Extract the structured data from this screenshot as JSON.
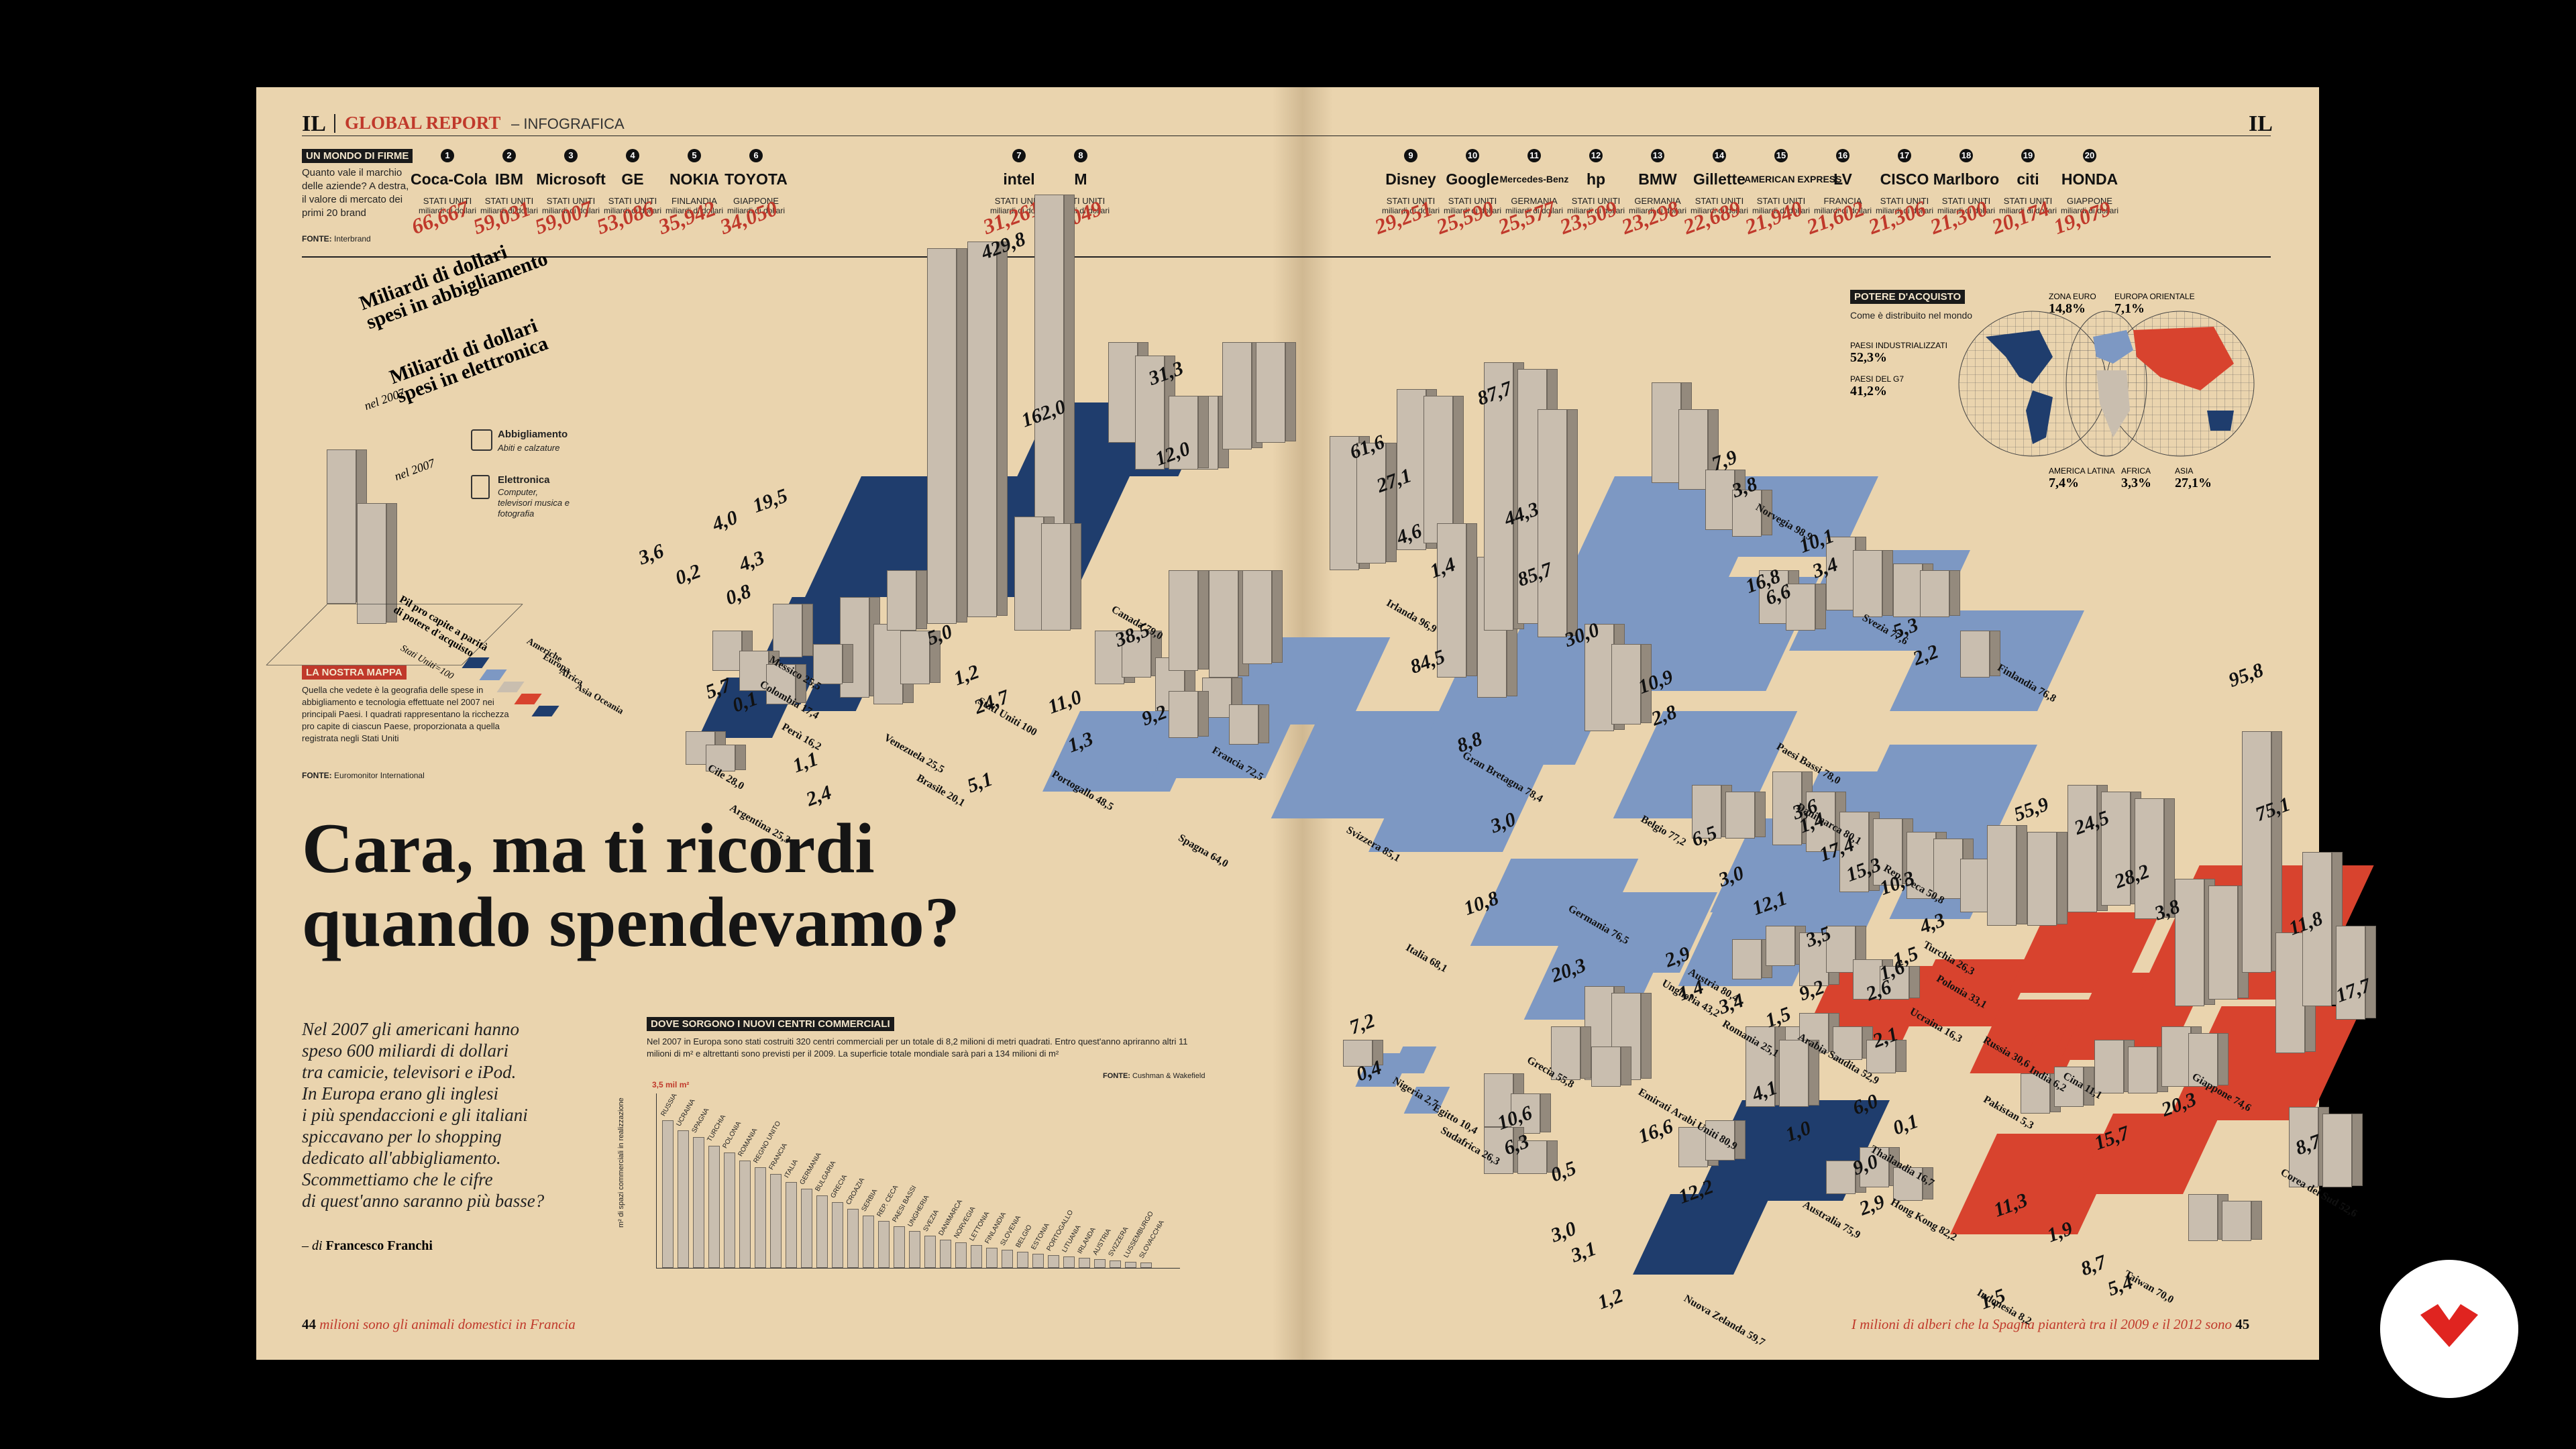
{
  "header": {
    "logo_left": "IL",
    "logo_right": "IL",
    "section": "GLOBAL REPORT",
    "section_sub": "– INFOGRAFICA"
  },
  "brands_box": {
    "tag": "UN MONDO DI FIRME",
    "text": "Quanto vale il marchio delle aziende? A destra, il valore di mercato dei primi 20 brand",
    "source_label": "FONTE:",
    "source": "Interbrand"
  },
  "brands": [
    {
      "n": "1",
      "logo": "Coca-Cola",
      "country": "STATI UNITI",
      "value": "66,667",
      "unit": "miliardi di dollari"
    },
    {
      "n": "2",
      "logo": "IBM",
      "country": "STATI UNITI",
      "value": "59,031",
      "unit": "miliardi di dollari"
    },
    {
      "n": "3",
      "logo": "Microsoft",
      "country": "STATI UNITI",
      "value": "59,007",
      "unit": "miliardi di dollari"
    },
    {
      "n": "4",
      "logo": "GE",
      "country": "STATI UNITI",
      "value": "53,086",
      "unit": "miliardi di dollari"
    },
    {
      "n": "5",
      "logo": "NOKIA",
      "country": "FINLANDIA",
      "value": "35,942",
      "unit": "miliardi di dollari"
    },
    {
      "n": "6",
      "logo": "TOYOTA",
      "country": "GIAPPONE",
      "value": "34,050",
      "unit": "miliardi di dollari"
    },
    {
      "n": "7",
      "logo": "intel",
      "country": "STATI UNITI",
      "value": "31,261",
      "unit": "miliardi di dollari"
    },
    {
      "n": "8",
      "logo": "M",
      "country": "STATI UNITI",
      "value": "31,049",
      "unit": "miliardi di dollari"
    },
    {
      "n": "9",
      "logo": "Disney",
      "country": "STATI UNITI",
      "value": "29,251",
      "unit": "miliardi di dollari"
    },
    {
      "n": "10",
      "logo": "Google",
      "country": "STATI UNITI",
      "value": "25,590",
      "unit": "miliardi di dollari"
    },
    {
      "n": "11",
      "logo": "Mercedes-Benz",
      "country": "GERMANIA",
      "value": "25,577",
      "unit": "miliardi di dollari"
    },
    {
      "n": "12",
      "logo": "hp",
      "country": "STATI UNITI",
      "value": "23,509",
      "unit": "miliardi di dollari"
    },
    {
      "n": "13",
      "logo": "BMW",
      "country": "GERMANIA",
      "value": "23,298",
      "unit": "miliardi di dollari"
    },
    {
      "n": "14",
      "logo": "Gillette",
      "country": "STATI UNITI",
      "value": "22,689",
      "unit": "miliardi di dollari"
    },
    {
      "n": "15",
      "logo": "AMERICAN EXPRESS",
      "country": "STATI UNITI",
      "value": "21,940",
      "unit": "miliardi di dollari"
    },
    {
      "n": "16",
      "logo": "LV",
      "country": "FRANCIA",
      "value": "21,602",
      "unit": "miliardi di dollari"
    },
    {
      "n": "17",
      "logo": "CISCO",
      "country": "STATI UNITI",
      "value": "21,306",
      "unit": "miliardi di dollari"
    },
    {
      "n": "18",
      "logo": "Marlboro",
      "country": "STATI UNITI",
      "value": "21,300",
      "unit": "miliardi di dollari"
    },
    {
      "n": "19",
      "logo": "citi",
      "country": "STATI UNITI",
      "value": "20,174",
      "unit": "miliardi di dollari"
    },
    {
      "n": "20",
      "logo": "HONDA",
      "country": "GIAPPONE",
      "value": "19,079",
      "unit": "miliardi di dollari"
    }
  ],
  "key": {
    "title1": "Miliardi di dollari spesi in abbigliamento",
    "year1": "nel 2007",
    "title2": "Miliardi di dollari spesi in elettronica",
    "year2": "nel 2007",
    "abb_label": "Abbigliamento",
    "abb_sub": "Abiti e calzature",
    "ele_label": "Elettronica",
    "ele_sub": "Computer, televisori musica e fotografia",
    "pil_label": "Pil pro capite a parità di potere d'acquisto",
    "pil_sub": "Stati Uniti=100",
    "continents": [
      "Americhe",
      "Europa",
      "Africa",
      "Asia",
      "Oceania"
    ]
  },
  "map_box": {
    "tag": "LA NOSTRA MAPPA",
    "text": "Quella che vedete è la geografia delle spese in abbigliamento e tecnologia effettuate nel 2007 nei principali Paesi. I quadrati rappresentano la ricchezza pro capite di ciascun Paese, proporzionata a quella registrata negli Stati Uniti",
    "source_label": "FONTE:",
    "source": "Euromonitor International"
  },
  "headline": {
    "line1": "Cara, ma ti ricordi",
    "line2": "quando spendevamo?"
  },
  "lede": {
    "lines": [
      "Nel 2007 gli americani hanno",
      "speso 600 miliardi di dollari",
      "tra camicie, televisori e iPod.",
      "In Europa erano gli inglesi",
      "i più spendaccioni e gli italiani",
      "spiccavano per lo shopping",
      "dedicato all'abbigliamento.",
      "Scommettiamo che le cifre",
      "di quest'anno saranno più basse?"
    ],
    "byline_prefix": "– di",
    "author": "Francesco Franchi"
  },
  "malls": {
    "tag": "DOVE SORGONO I NUOVI CENTRI COMMERCIALI",
    "text": "Nel 2007 in Europa sono stati costruiti 320 centri commerciali per un totale di 8,2 milioni di metri quadrati. Entro quest'anno apriranno altri 11 milioni di m² e altrettanti sono previsti per il 2009. La superficie totale mondiale sarà pari a 134 milioni di m²",
    "source_label": "FONTE:",
    "source": "Cushman & Wakefield",
    "y_label": "m² di spazi commerciali in realizzazione",
    "y_top": "3,5 mil m²",
    "countries": [
      "RUSSIA",
      "UCRAINA",
      "SPAGNA",
      "TURCHIA",
      "POLONIA",
      "ROMANIA",
      "REGNO UNITO",
      "FRANCIA",
      "ITALIA",
      "GERMANIA",
      "BULGARIA",
      "GRECIA",
      "CROAZIA",
      "SERBIA",
      "REP. CECA",
      "PAESI BASSI",
      "UNGHERIA",
      "SVEZIA",
      "DANIMARCA",
      "NORVEGIA",
      "LETTONIA",
      "FINLANDIA",
      "SLOVENIA",
      "BELGIO",
      "ESTONIA",
      "PORTOGALLO",
      "LITUANIA",
      "IRLANDA",
      "AUSTRIA",
      "SVIZZERA",
      "LUSSEMBURGO",
      "SLOVACCHIA"
    ]
  },
  "power": {
    "tag": "POTERE D'ACQUISTO",
    "sub": "Come è distribuito nel mondo",
    "items": [
      {
        "label": "ZONA EURO",
        "value": "14,8%"
      },
      {
        "label": "EUROPA ORIENTALE",
        "value": "7,1%"
      },
      {
        "label": "PAESI INDUSTRIALIZZATI",
        "value": "52,3%"
      },
      {
        "label": "PAESI DEL G7",
        "value": "41,2%"
      },
      {
        "label": "AMERICA LATINA",
        "value": "7,4%"
      },
      {
        "label": "AFRICA",
        "value": "3,3%"
      },
      {
        "label": "ASIA",
        "value": "27,1%"
      }
    ]
  },
  "footer": {
    "left_num": "44",
    "left_text": "milioni sono gli animali domestici in Francia",
    "right_text": "I milioni di alberi che la Spagna pianterà tra il 2009 e il 2012 sono",
    "right_num": "45"
  },
  "values": [
    "429,8",
    "162,0",
    "31,3",
    "12,0",
    "3,6",
    "0,2",
    "4,0",
    "19,5",
    "0,8",
    "4,3",
    "5,7",
    "0,1",
    "1,1",
    "2,4",
    "5,0",
    "1,2",
    "24,7",
    "5,1",
    "11,0",
    "1,3",
    "38,5",
    "9,2",
    "61,6",
    "27,1",
    "4,6",
    "1,4",
    "84,5",
    "87,7",
    "44,3",
    "85,7",
    "30,0",
    "10,9",
    "2,8",
    "8,8",
    "3,0",
    "10,8",
    "20,3",
    "7,9",
    "3,8",
    "16,8",
    "6,6",
    "10,1",
    "3,4",
    "5,3",
    "2,2",
    "6,5",
    "3,0",
    "12,1",
    "3,6",
    "1,4",
    "17,4",
    "15,3",
    "10,3",
    "4,3",
    "55,9",
    "24,5",
    "28,2",
    "3,8",
    "95,8",
    "75,1",
    "11,8",
    "17,7",
    "3,5",
    "1,5",
    "2,9",
    "1,4",
    "3,4",
    "1,5",
    "9,2",
    "2,6",
    "1,6",
    "7,2",
    "0,4",
    "10,6",
    "6,3",
    "0,5",
    "3,0",
    "16,6",
    "12,2",
    "3,1",
    "1,2",
    "4,1",
    "1,0",
    "6,0",
    "0,1",
    "9,0",
    "2,9",
    "2,1",
    "11,3",
    "1,9",
    "15,7",
    "20,3",
    "8,7",
    "1,5",
    "8,7",
    "5,4"
  ],
  "country_labels": [
    "Messico 25,5",
    "Colombia 17,4",
    "Perù 16,2",
    "Cile 28,0",
    "Argentina 25,3",
    "Venezuela 25,5",
    "Brasile 20,1",
    "Stati Uniti 100",
    "Canada 79,0",
    "Portogallo 48,5",
    "Spagna 64,0",
    "Francia 72,5",
    "Svizzera 85,1",
    "Italia 68,1",
    "Gran Bretagna 78,4",
    "Germania 76,5",
    "Irlanda 96,9",
    "Belgio 77,2",
    "Paesi Bassi 78,0",
    "Norvegia 98,9",
    "Svezia 77,6",
    "Finlandia 76,8",
    "Danimarca 80,1",
    "Rep. Ceca 50,8",
    "Polonia 33,1",
    "Turchia 26,3",
    "Ucraina 16,3",
    "Ungheria 43,2",
    "Austria 80,4",
    "Romania 25,1",
    "Grecia 55,8",
    "Arabia Saudita 52,9",
    "Emirati Arabi Uniti 80,9",
    "Russia 30,6",
    "India 6,2",
    "Cina 11,1",
    "Pakistan 5,3",
    "Giappone 74,6",
    "Thailandia 16,7",
    "Hong Kong 82,2",
    "Corea del Sud 52,6",
    "Taiwan 70,0",
    "Indonesia 8,2",
    "Nigeria 2,7",
    "Egitto 10,4",
    "Sudafrica 26,3",
    "Australia 75,9",
    "Nuova Zelanda 59,7"
  ],
  "colors": {
    "page": "#ead4ae",
    "americas": "#1f3d6d",
    "europe": "#7d98c3",
    "asia": "#d8432e",
    "accent": "#c0392b"
  }
}
